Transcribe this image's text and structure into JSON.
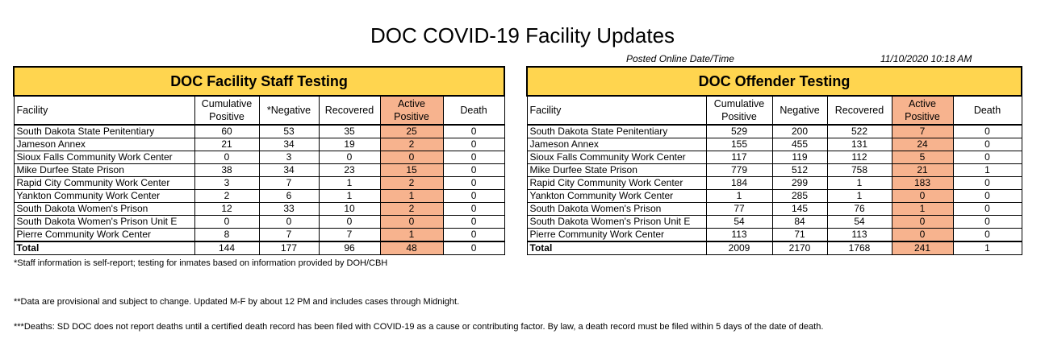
{
  "title": "DOC COVID-19 Facility Updates",
  "posted": {
    "label": "Posted Online Date/Time",
    "value": "11/10/2020 10:18 AM"
  },
  "colors": {
    "section_header": "#ffd54f",
    "active_column": "#f7b38e"
  },
  "staff": {
    "section_title": "DOC Facility Staff Testing",
    "headers": [
      "Facility",
      "Cumulative Positive",
      "*Negative",
      "Recovered",
      "Active Positive",
      "Death"
    ],
    "rows": [
      [
        "South Dakota State Penitentiary",
        "60",
        "53",
        "35",
        "25",
        "0"
      ],
      [
        "Jameson Annex",
        "21",
        "34",
        "19",
        "2",
        "0"
      ],
      [
        "Sioux Falls Community Work Center",
        "0",
        "3",
        "0",
        "0",
        "0"
      ],
      [
        "Mike Durfee State Prison",
        "38",
        "34",
        "23",
        "15",
        "0"
      ],
      [
        "Rapid City Community Work Center",
        "3",
        "7",
        "1",
        "2",
        "0"
      ],
      [
        "Yankton Community Work Center",
        "2",
        "6",
        "1",
        "1",
        "0"
      ],
      [
        "South Dakota Women's Prison",
        "12",
        "33",
        "10",
        "2",
        "0"
      ],
      [
        "South Dakota Women's Prison Unit E",
        "0",
        "0",
        "0",
        "0",
        "0"
      ],
      [
        "Pierre Community Work Center",
        "8",
        "7",
        "7",
        "1",
        "0"
      ]
    ],
    "total": [
      "Total",
      "144",
      "177",
      "96",
      "48",
      "0"
    ]
  },
  "offender": {
    "section_title": "DOC Offender Testing",
    "headers": [
      "Facility",
      "Cumulative Positive",
      "Negative",
      "Recovered",
      "Active Positive",
      "Death"
    ],
    "rows": [
      [
        "South Dakota State Penitentiary",
        "529",
        "200",
        "522",
        "7",
        "0"
      ],
      [
        "Jameson Annex",
        "155",
        "455",
        "131",
        "24",
        "0"
      ],
      [
        "Sioux Falls Community Work Center",
        "117",
        "119",
        "112",
        "5",
        "0"
      ],
      [
        "Mike Durfee State Prison",
        "779",
        "512",
        "758",
        "21",
        "1"
      ],
      [
        "Rapid City Community Work Center",
        "184",
        "299",
        "1",
        "183",
        "0"
      ],
      [
        "Yankton Community Work Center",
        "1",
        "285",
        "1",
        "0",
        "0"
      ],
      [
        "South Dakota Women's Prison",
        "77",
        "145",
        "76",
        "1",
        "0"
      ],
      [
        "South Dakota Women's Prison Unit E",
        "54",
        "84",
        "54",
        "0",
        "0"
      ],
      [
        "Pierre Community Work Center",
        "113",
        "71",
        "113",
        "0",
        "0"
      ]
    ],
    "total": [
      "Total",
      "2009",
      "2170",
      "1768",
      "241",
      "1"
    ]
  },
  "notes": [
    "*Staff information is self-report; testing for inmates based on information provided by DOH/CBH",
    "**Data are provisional and subject to change.  Updated M-F by about 12 PM and includes cases through Midnight.",
    "***Deaths: SD DOC does not report deaths until a certified death record has been filed with COVID-19 as a cause or contributing factor.  By law, a death record must be filed within 5 days of the date of death."
  ]
}
